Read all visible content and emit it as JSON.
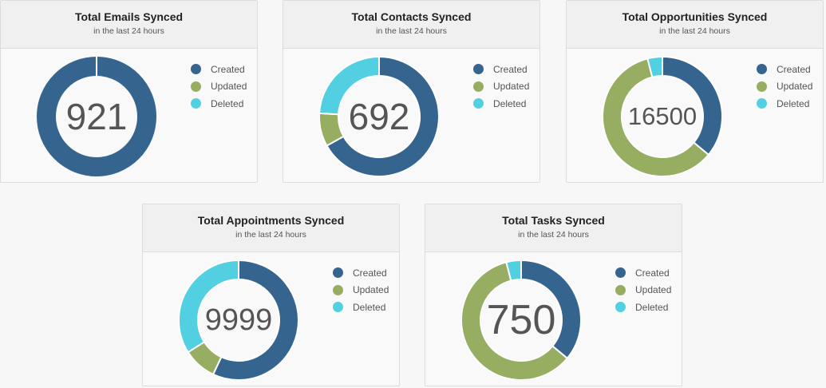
{
  "colors": {
    "created": "#35658f",
    "updated": "#97ad62",
    "deleted": "#53cfe2"
  },
  "legend": [
    "Created",
    "Updated",
    "Deleted"
  ],
  "chart_data": [
    {
      "type": "pie",
      "title": "Total Emails Synced",
      "subtitle": "in the last 24 hours",
      "total": "921",
      "categories": [
        "Created",
        "Updated",
        "Deleted"
      ],
      "values": [
        921,
        0,
        0
      ]
    },
    {
      "type": "pie",
      "title": "Total Contacts Synced",
      "subtitle": "in the last 24 hours",
      "total": "692",
      "categories": [
        "Created",
        "Updated",
        "Deleted"
      ],
      "values": [
        463,
        62,
        167
      ]
    },
    {
      "type": "pie",
      "title": "Total Opportunities Synced",
      "subtitle": "in the last 24 hours",
      "total": "16500",
      "categories": [
        "Created",
        "Updated",
        "Deleted"
      ],
      "values": [
        5940,
        9900,
        660
      ]
    },
    {
      "type": "pie",
      "title": "Total Appointments Synced",
      "subtitle": "in the last 24 hours",
      "total": "9999",
      "categories": [
        "Created",
        "Updated",
        "Deleted"
      ],
      "values": [
        5699,
        900,
        3400
      ]
    },
    {
      "type": "pie",
      "title": "Total Tasks Synced",
      "subtitle": "in the last 24 hours",
      "total": "750",
      "categories": [
        "Created",
        "Updated",
        "Deleted"
      ],
      "values": [
        270,
        450,
        30
      ]
    }
  ]
}
